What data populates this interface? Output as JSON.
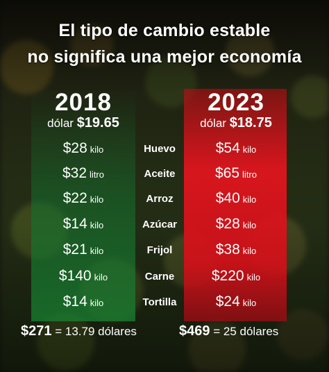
{
  "title": {
    "line1": "El tipo de cambio estable",
    "line2": "no significa una mejor economía"
  },
  "columns": {
    "left": {
      "year": "2018",
      "dollar_label": "dólar",
      "dollar_value": "$19.65",
      "total_sum": "$271",
      "total_equals": "= 13.79 dólares"
    },
    "right": {
      "year": "2023",
      "dollar_label": "dólar",
      "dollar_value": "$18.75",
      "total_sum": "$469",
      "total_equals": "= 25 dólares"
    }
  },
  "rows": [
    {
      "item": "Huevo",
      "left_amt": "$28",
      "left_unit": "kilo",
      "right_amt": "$54",
      "right_unit": "kilo"
    },
    {
      "item": "Aceite",
      "left_amt": "$32",
      "left_unit": "litro",
      "right_amt": "$65",
      "right_unit": "litro"
    },
    {
      "item": "Arroz",
      "left_amt": "$22",
      "left_unit": "kilo",
      "right_amt": "$40",
      "right_unit": "kilo"
    },
    {
      "item": "Azúcar",
      "left_amt": "$14",
      "left_unit": "kilo",
      "right_amt": "$28",
      "right_unit": "kilo"
    },
    {
      "item": "Frijol",
      "left_amt": "$21",
      "left_unit": "kilo",
      "right_amt": "$38",
      "right_unit": "kilo"
    },
    {
      "item": "Carne",
      "left_amt": "$140",
      "left_unit": "kilo",
      "right_amt": "$220",
      "right_unit": "kilo"
    },
    {
      "item": "Tortilla",
      "left_amt": "$14",
      "left_unit": "kilo",
      "right_amt": "$24",
      "right_unit": "kilo"
    }
  ],
  "colors": {
    "left_panel": "#1f7a3a",
    "right_panel": "#e0141e",
    "text": "#ffffff"
  }
}
